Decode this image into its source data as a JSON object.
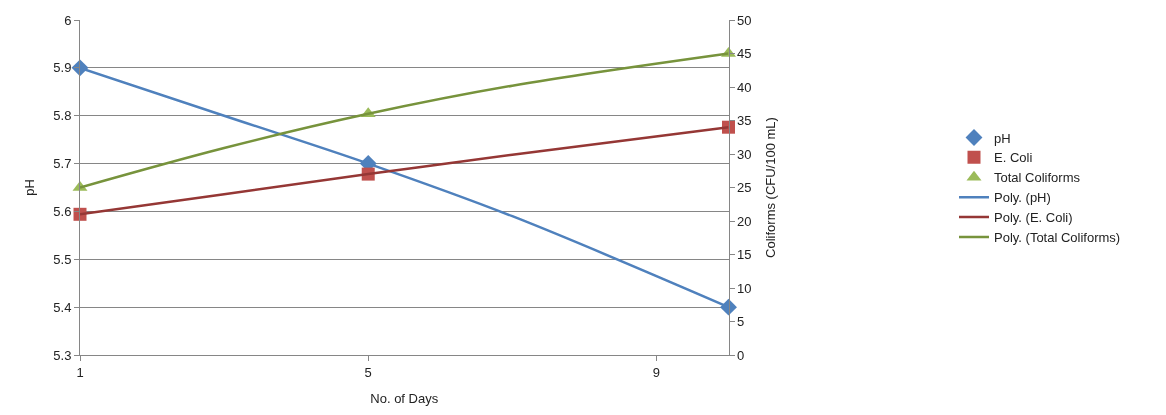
{
  "chart_data": {
    "type": "scatter",
    "xlabel": "No. of Days",
    "ylabel": "pH",
    "y2label": "Coliforms (CFU/100 mL)",
    "x": [
      1,
      5,
      10
    ],
    "xlim": [
      1,
      10
    ],
    "xticks": [
      1,
      5,
      9
    ],
    "ylim": [
      5.3,
      6
    ],
    "yticks": [
      5.3,
      5.4,
      5.5,
      5.6,
      5.7,
      5.8,
      5.9,
      6
    ],
    "y2lim": [
      0,
      50
    ],
    "y2ticks": [
      0,
      5,
      10,
      15,
      20,
      25,
      30,
      35,
      40,
      45,
      50
    ],
    "grid": "y",
    "legend": "right",
    "series": [
      {
        "name": "pH",
        "color": "#4f81bd",
        "marker": "diamond",
        "values": [
          5.9,
          5.7,
          5.4
        ]
      },
      {
        "name": "E. Coli",
        "color": "#c0504d",
        "marker": "square",
        "axis": "y2",
        "values": [
          21,
          27,
          34
        ]
      },
      {
        "name": "Total Coliforms",
        "color": "#9bbb59",
        "marker": "triangle",
        "axis": "y2",
        "values": [
          25,
          36,
          45
        ]
      },
      {
        "name": "Poly. (pH)",
        "type": "line",
        "color": "#4f81bd",
        "marker": "none",
        "x": [
          1,
          3,
          5,
          7,
          10
        ],
        "values": [
          5.9,
          5.8,
          5.7,
          5.59,
          5.4
        ]
      },
      {
        "name": "Poly. (E. Coli)",
        "type": "line",
        "color": "#953735",
        "marker": "none",
        "axis": "y2",
        "x": [
          1,
          3,
          5,
          7,
          10
        ],
        "values": [
          21,
          24,
          27,
          29.9,
          34
        ]
      },
      {
        "name": "Poly. (Total Coliforms)",
        "type": "line",
        "color": "#77933c",
        "marker": "none",
        "axis": "y2",
        "x": [
          1,
          3,
          5,
          7,
          10
        ],
        "values": [
          25,
          30.9,
          36,
          40.2,
          45
        ]
      }
    ]
  }
}
